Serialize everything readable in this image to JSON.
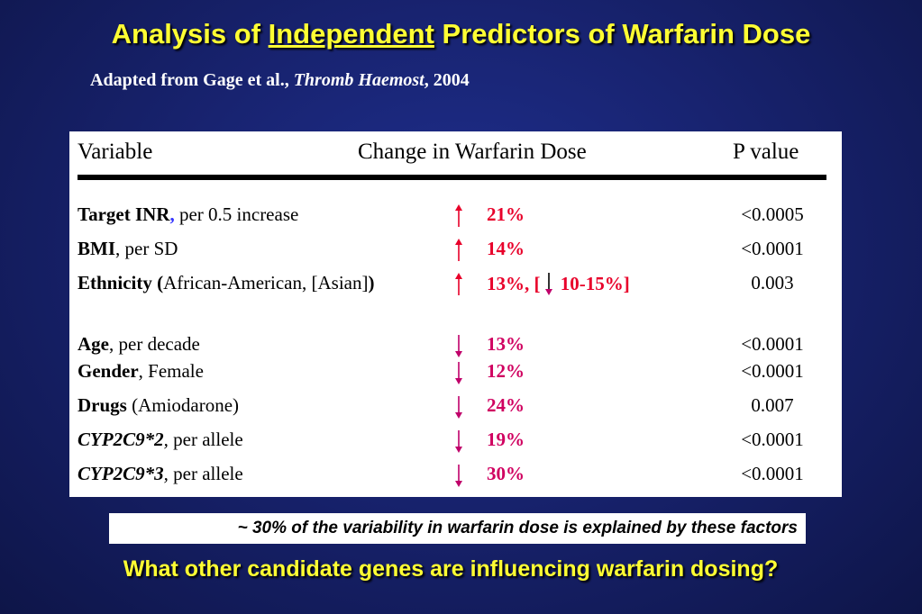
{
  "title": {
    "prefix": "Analysis of ",
    "underlined": "Independent",
    "suffix": " Predictors of Warfarin Dose"
  },
  "subtitle": {
    "prefix": "Adapted from Gage et al., ",
    "journal": "Thromb Haemost",
    "year": ", 2004"
  },
  "table": {
    "headers": {
      "variable": "Variable",
      "change": "Change in Warfarin Dose",
      "pvalue": "P value"
    },
    "rows": [
      {
        "bold": "Target INR",
        "sep": ",",
        "rest": " per 0.5 increase",
        "direction": "up",
        "change": "21%",
        "p": "<0.0005"
      },
      {
        "bold": "BMI",
        "sep": ",",
        "rest": " per SD",
        "direction": "up",
        "change": "14%",
        "p": "<0.0001"
      },
      {
        "bold": "Ethnicity (",
        "sep": "",
        "rest": "African-American, [Asian]",
        "bold_end": ")",
        "direction": "up",
        "change": "13%,  [",
        "change_extra": " 10-15%]",
        "p": "0.003"
      },
      {
        "bold": "Age",
        "sep": ",",
        "rest": " per decade",
        "direction": "down",
        "change": "13%",
        "p": "<0.0001"
      },
      {
        "bold": "Gender",
        "sep": ",",
        "rest": " Female",
        "direction": "down",
        "change": "12%",
        "p": "<0.0001"
      },
      {
        "bold": "Drugs",
        "sep": "",
        "rest": " (Amiodarone)",
        "direction": "down",
        "change": "24%",
        "p": "0.007"
      },
      {
        "bold": "CYP2C9*2",
        "sep": ",",
        "rest": " per allele",
        "direction": "down",
        "change": "19%",
        "p": "<0.0001"
      },
      {
        "bold": "CYP2C9*3",
        "sep": ",",
        "rest": " per allele",
        "direction": "down",
        "change": "30%",
        "p": "<0.0001"
      }
    ]
  },
  "note": "~ 30% of the variability in warfarin dose is explained by these factors",
  "question": "What other candidate genes are influencing warfarin dosing?",
  "colors": {
    "title": "#ffff33",
    "up_arrow": "#e8002a",
    "down_arrow": "#c0006a",
    "target_inr_comma": "#3333ff"
  },
  "icons": {
    "increase": "arrow-up-icon",
    "decrease": "arrow-down-icon"
  }
}
